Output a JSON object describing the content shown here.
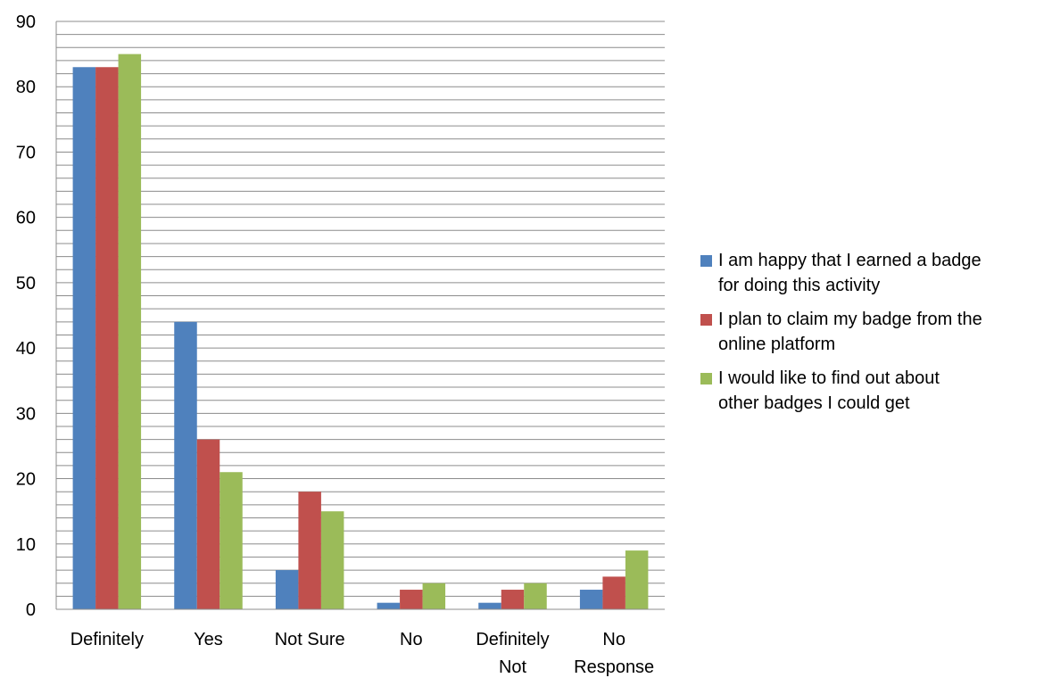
{
  "chart_data": {
    "type": "bar",
    "title": "",
    "xlabel": "",
    "ylabel": "",
    "ylim": [
      0,
      90
    ],
    "y_ticks": [
      0,
      10,
      20,
      30,
      40,
      50,
      60,
      70,
      80,
      90
    ],
    "minor_gridline_step": 2,
    "grid": true,
    "legend_position": "right",
    "categories": [
      [
        "Definitely"
      ],
      [
        "Yes"
      ],
      [
        "Not Sure"
      ],
      [
        "No"
      ],
      [
        "Definitely",
        "Not"
      ],
      [
        "No",
        "Response"
      ]
    ],
    "series": [
      {
        "name": "I am happy that I earned a badge for doing this activity",
        "legend_lines": [
          "I am happy that I earned a badge",
          "for doing this activity"
        ],
        "color": "#4F81BD",
        "values": [
          83,
          44,
          6,
          1,
          1,
          3
        ]
      },
      {
        "name": "I plan to claim my badge from the online platform",
        "legend_lines": [
          "I plan to claim my badge from the",
          "online platform"
        ],
        "color": "#C0504D",
        "values": [
          83,
          26,
          18,
          3,
          3,
          5
        ]
      },
      {
        "name": "I would like to find out about other badges I could get",
        "legend_lines": [
          "I would like to find out about",
          "other badges I could get"
        ],
        "color": "#9BBB59",
        "values": [
          85,
          21,
          15,
          4,
          4,
          9
        ]
      }
    ]
  }
}
